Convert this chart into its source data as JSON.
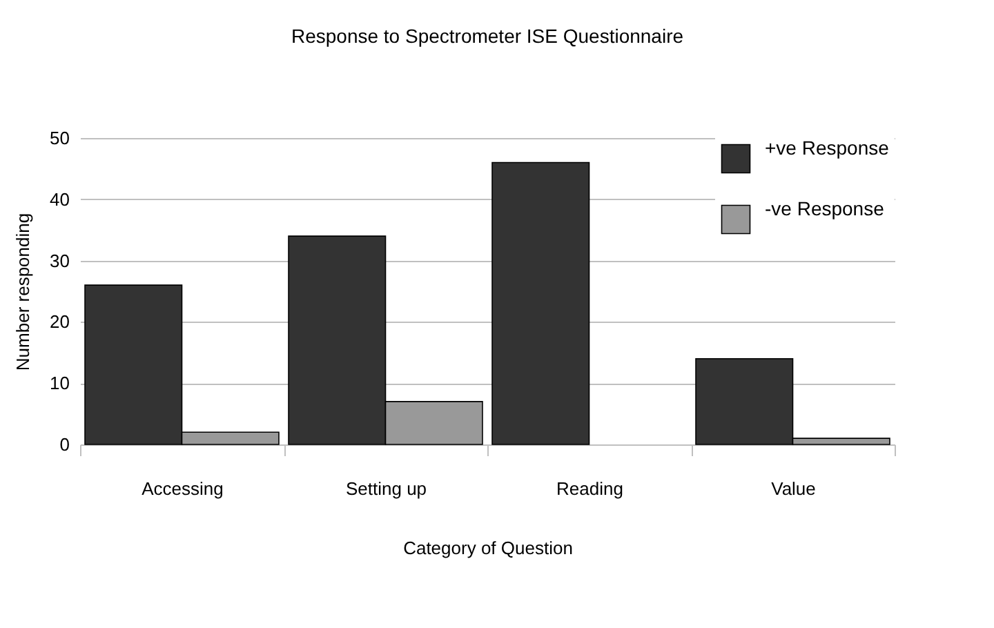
{
  "chart_data": {
    "type": "bar",
    "title": "Response to Spectrometer ISE Questionnaire",
    "xlabel": "Category of Question",
    "ylabel": "Number responding",
    "categories": [
      "Accessing",
      "Setting up",
      "Reading",
      "Value"
    ],
    "series": [
      {
        "name": "+ve Response",
        "color": "#333333",
        "values": [
          26,
          34,
          46,
          14
        ]
      },
      {
        "name": "-ve Response",
        "color": "#999999",
        "values": [
          2,
          7,
          0,
          1
        ]
      }
    ],
    "ylim": [
      0,
      50
    ],
    "yticks": [
      0,
      10,
      20,
      30,
      40,
      50
    ],
    "grid": "y",
    "legend": "top right"
  }
}
